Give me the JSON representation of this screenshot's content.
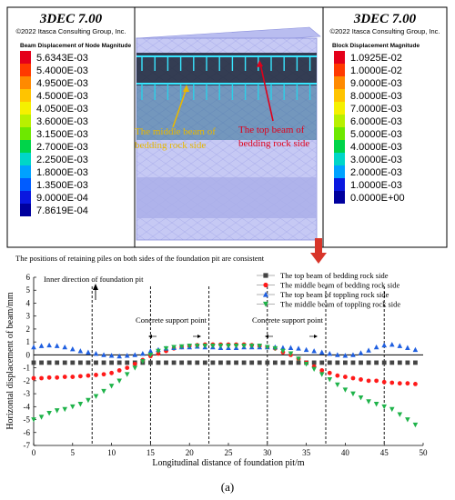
{
  "top_panel": {
    "left_legend": {
      "software": "3DEC 7.00",
      "copyright": "©2022 Itasca Consulting Group, Inc.",
      "title": "Beam Displacement of Node Magnitude",
      "values": [
        "5.6343E-03",
        "5.4000E-03",
        "4.9500E-03",
        "4.5000E-03",
        "4.0500E-03",
        "3.6000E-03",
        "3.1500E-03",
        "2.7000E-03",
        "2.2500E-03",
        "1.8000E-03",
        "1.3500E-03",
        "9.0000E-04",
        "7.8619E-04"
      ],
      "colors": [
        "#e4001a",
        "#ff3a00",
        "#ff8a00",
        "#ffc400",
        "#f5f000",
        "#b8f000",
        "#6ee800",
        "#00d44a",
        "#00d6c8",
        "#00a2ff",
        "#005cff",
        "#0a18e0",
        "#00009e"
      ]
    },
    "right_legend": {
      "software": "3DEC 7.00",
      "copyright": "©2022 Itasca Consulting Group, Inc.",
      "title": "Block  Displacement Magnitude",
      "values": [
        "1.0925E-02",
        "1.0000E-02",
        "9.0000E-03",
        "8.0000E-03",
        "7.0000E-03",
        "6.0000E-03",
        "5.0000E-03",
        "4.0000E-03",
        "3.0000E-03",
        "2.0000E-03",
        "1.0000E-03",
        "0.0000E+00"
      ],
      "colors": [
        "#e4001a",
        "#ff3a00",
        "#ff8a00",
        "#ffc400",
        "#f5f000",
        "#b8f000",
        "#6ee800",
        "#00d44a",
        "#00d6c8",
        "#00a2ff",
        "#0a18e0",
        "#00009e"
      ]
    },
    "annotation_middle": [
      "The middle beam of",
      "bedding rock side"
    ],
    "annotation_top": [
      "The top beam of",
      "bedding rock side"
    ],
    "annotation_colors": {
      "middle": "#e8b800",
      "top": "#e0001a"
    }
  },
  "consistency_note": "The positions of retaining piles on both sides of the foundation pit are consistent",
  "chart_annotations": {
    "inner_direction": "Inner direction of foundation pit",
    "support_point_1": "Concrete support point",
    "support_point_2": "Concrete support point"
  },
  "caption": "(a)",
  "chart_data": {
    "type": "scatter",
    "xlabel": "Longitudinal distance of foundation pit/m",
    "ylabel": "Horizontal displacement of beam/mm",
    "xlim": [
      0,
      50
    ],
    "ylim": [
      -7,
      6
    ],
    "xticks": [
      0,
      5,
      10,
      15,
      20,
      25,
      30,
      35,
      40,
      45,
      50
    ],
    "yticks": [
      -7,
      -6,
      -5,
      -4,
      -3,
      -2,
      -1,
      0,
      1,
      2,
      3,
      4,
      5,
      6
    ],
    "x_tick_labels": [
      "0",
      "5",
      "10",
      "15",
      "20",
      "25",
      "30",
      "35",
      "40",
      "45",
      "50"
    ],
    "y_tick_labels": [
      "-7",
      "-6",
      "-5",
      "-4",
      "-3",
      "-2",
      "-1",
      "0",
      "1",
      "2",
      "3",
      "4",
      "5",
      "6"
    ],
    "reference_lines_x": [
      7.5,
      15,
      22.5,
      30,
      37.5,
      45
    ],
    "zero_line": true,
    "grid": false,
    "legend_position": "top-right",
    "series": [
      {
        "name": "The top beam of bedding rock side",
        "marker": "square",
        "color": "#444444",
        "x": [
          0,
          1,
          2,
          3,
          4,
          5,
          6,
          7,
          8,
          9,
          10,
          11,
          12,
          13,
          14,
          15,
          16,
          17,
          18,
          19,
          20,
          21,
          22,
          23,
          24,
          25,
          26,
          27,
          28,
          29,
          30,
          31,
          32,
          33,
          34,
          35,
          36,
          37,
          38,
          39,
          40,
          41,
          42,
          43,
          44,
          45,
          46,
          47,
          48,
          49
        ],
        "y": [
          -0.6,
          -0.6,
          -0.6,
          -0.6,
          -0.6,
          -0.6,
          -0.6,
          -0.6,
          -0.6,
          -0.6,
          -0.6,
          -0.6,
          -0.6,
          -0.6,
          -0.6,
          -0.6,
          -0.6,
          -0.6,
          -0.6,
          -0.6,
          -0.6,
          -0.6,
          -0.6,
          -0.6,
          -0.6,
          -0.6,
          -0.6,
          -0.6,
          -0.6,
          -0.6,
          -0.6,
          -0.6,
          -0.6,
          -0.6,
          -0.6,
          -0.6,
          -0.6,
          -0.6,
          -0.6,
          -0.6,
          -0.6,
          -0.6,
          -0.6,
          -0.6,
          -0.6,
          -0.6,
          -0.6,
          -0.6,
          -0.6,
          -0.6
        ]
      },
      {
        "name": "The middle beam of bedding rock side",
        "marker": "circle",
        "color": "#ff1a1a",
        "x": [
          0,
          1,
          2,
          3,
          4,
          5,
          6,
          7,
          8,
          9,
          10,
          11,
          12,
          13,
          14,
          15,
          16,
          17,
          18,
          19,
          20,
          21,
          22,
          23,
          24,
          25,
          26,
          27,
          28,
          29,
          30,
          31,
          32,
          33,
          34,
          35,
          36,
          37,
          38,
          39,
          40,
          41,
          42,
          43,
          44,
          45,
          46,
          47,
          48,
          49
        ],
        "y": [
          -1.8,
          -1.8,
          -1.75,
          -1.75,
          -1.7,
          -1.7,
          -1.65,
          -1.6,
          -1.55,
          -1.5,
          -1.4,
          -1.2,
          -1.0,
          -0.7,
          -0.4,
          -0.1,
          0.1,
          0.3,
          0.5,
          0.6,
          0.7,
          0.75,
          0.8,
          0.8,
          0.8,
          0.8,
          0.8,
          0.8,
          0.75,
          0.7,
          0.6,
          0.5,
          0.2,
          0.0,
          -0.3,
          -0.6,
          -0.9,
          -1.2,
          -1.4,
          -1.6,
          -1.7,
          -1.8,
          -1.9,
          -2.0,
          -2.0,
          -2.1,
          -2.15,
          -2.2,
          -2.2,
          -2.25
        ]
      },
      {
        "name": "The top beam of toppling rock side",
        "marker": "triangle-up",
        "color": "#1f5fe0",
        "x": [
          0,
          1,
          2,
          3,
          4,
          5,
          6,
          7,
          8,
          9,
          10,
          11,
          12,
          13,
          14,
          15,
          16,
          17,
          18,
          19,
          20,
          21,
          22,
          23,
          24,
          25,
          26,
          27,
          28,
          29,
          30,
          31,
          32,
          33,
          34,
          35,
          36,
          37,
          38,
          39,
          40,
          41,
          42,
          43,
          44,
          45,
          46,
          47,
          48,
          49
        ],
        "y": [
          0.6,
          0.7,
          0.75,
          0.7,
          0.6,
          0.45,
          0.3,
          0.2,
          0.1,
          0.0,
          -0.05,
          -0.1,
          -0.05,
          0.0,
          0.1,
          0.3,
          0.4,
          0.5,
          0.55,
          0.6,
          0.6,
          0.65,
          0.6,
          0.6,
          0.55,
          0.55,
          0.55,
          0.6,
          0.6,
          0.6,
          0.6,
          0.6,
          0.55,
          0.55,
          0.5,
          0.4,
          0.3,
          0.2,
          0.1,
          0.0,
          -0.05,
          0.0,
          0.15,
          0.35,
          0.6,
          0.75,
          0.8,
          0.7,
          0.55,
          0.4
        ]
      },
      {
        "name": "The middle beam of toppling rock side",
        "marker": "triangle-down",
        "color": "#1fb34a",
        "x": [
          0,
          1,
          2,
          3,
          4,
          5,
          6,
          7,
          8,
          9,
          10,
          11,
          12,
          13,
          14,
          15,
          16,
          17,
          18,
          19,
          20,
          21,
          22,
          23,
          24,
          25,
          26,
          27,
          28,
          29,
          30,
          31,
          32,
          33,
          34,
          35,
          36,
          37,
          38,
          39,
          40,
          41,
          42,
          43,
          44,
          45,
          46,
          47,
          48,
          49
        ],
        "y": [
          -5.0,
          -4.8,
          -4.5,
          -4.3,
          -4.2,
          -4.0,
          -3.8,
          -3.5,
          -3.2,
          -2.8,
          -2.4,
          -2.0,
          -1.5,
          -1.0,
          -0.5,
          0.0,
          0.3,
          0.5,
          0.6,
          0.65,
          0.7,
          0.7,
          0.7,
          0.7,
          0.7,
          0.7,
          0.7,
          0.7,
          0.7,
          0.7,
          0.6,
          0.5,
          0.3,
          0.1,
          -0.3,
          -0.7,
          -1.1,
          -1.5,
          -1.9,
          -2.3,
          -2.7,
          -3.0,
          -3.3,
          -3.6,
          -3.8,
          -4.0,
          -4.2,
          -4.6,
          -5.0,
          -5.4
        ]
      }
    ]
  }
}
